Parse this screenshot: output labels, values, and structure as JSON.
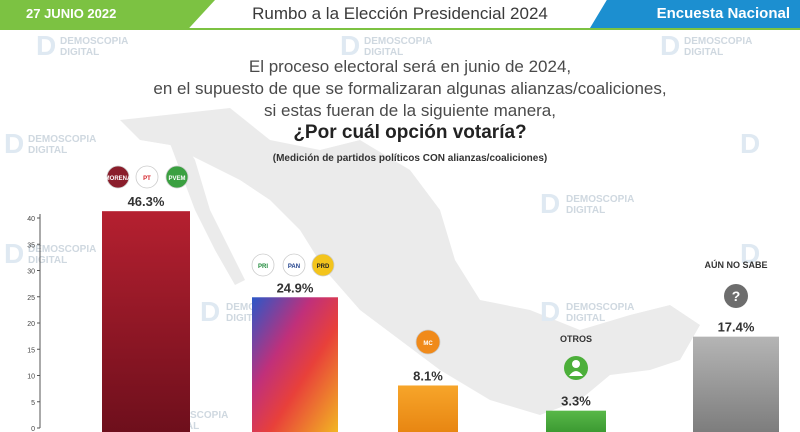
{
  "header": {
    "date": "27 JUNIO 2022",
    "title": "Rumbo a la Elección Presidencial 2024",
    "right": "Encuesta Nacional"
  },
  "question": {
    "line1": "El proceso electoral será en junio de 2024,",
    "line2": "en el supuesto de que se formalizaran algunas alianzas/coaliciones,",
    "line3": "si estas fueran de la siguiente manera,",
    "line4": "¿Por cuál opción votaría?",
    "note": "(Medición de partidos políticos CON alianzas/coaliciones)"
  },
  "watermark": {
    "line1": "DEMOSCOPIA",
    "line2": "DIGITAL",
    "logo": "D"
  },
  "party_badges": {
    "bar1": [
      "MORENA",
      "PT",
      "PVEM"
    ],
    "bar2": [
      "PRI",
      "PAN",
      "PRD"
    ],
    "bar3": [
      "MC"
    ]
  },
  "icons": {
    "aun_no_sabe": "question-icon",
    "otros": "person-icon"
  },
  "colors": {
    "bar1": "#9e1b2a",
    "bar2": "gradient",
    "bar3": "#f59a1b",
    "bar4": "#4caf3a",
    "bar5": "#9c9c9c",
    "accent_green": "#7cc242",
    "accent_blue": "#1c8fd0"
  },
  "chart_data": {
    "type": "bar",
    "categories": [
      "",
      "",
      "",
      "OTROS",
      "AÚN NO SABE"
    ],
    "values": [
      46.3,
      24.9,
      8.1,
      3.3,
      17.4
    ],
    "data_labels": [
      "46.3%",
      "24.9%",
      "8.1%",
      "3.3%",
      "17.4%"
    ],
    "ylim": [
      0,
      40
    ],
    "yticks": [
      0,
      5,
      10,
      15,
      20,
      25,
      30,
      35,
      40
    ],
    "title": "",
    "xlabel": "",
    "ylabel": ""
  }
}
